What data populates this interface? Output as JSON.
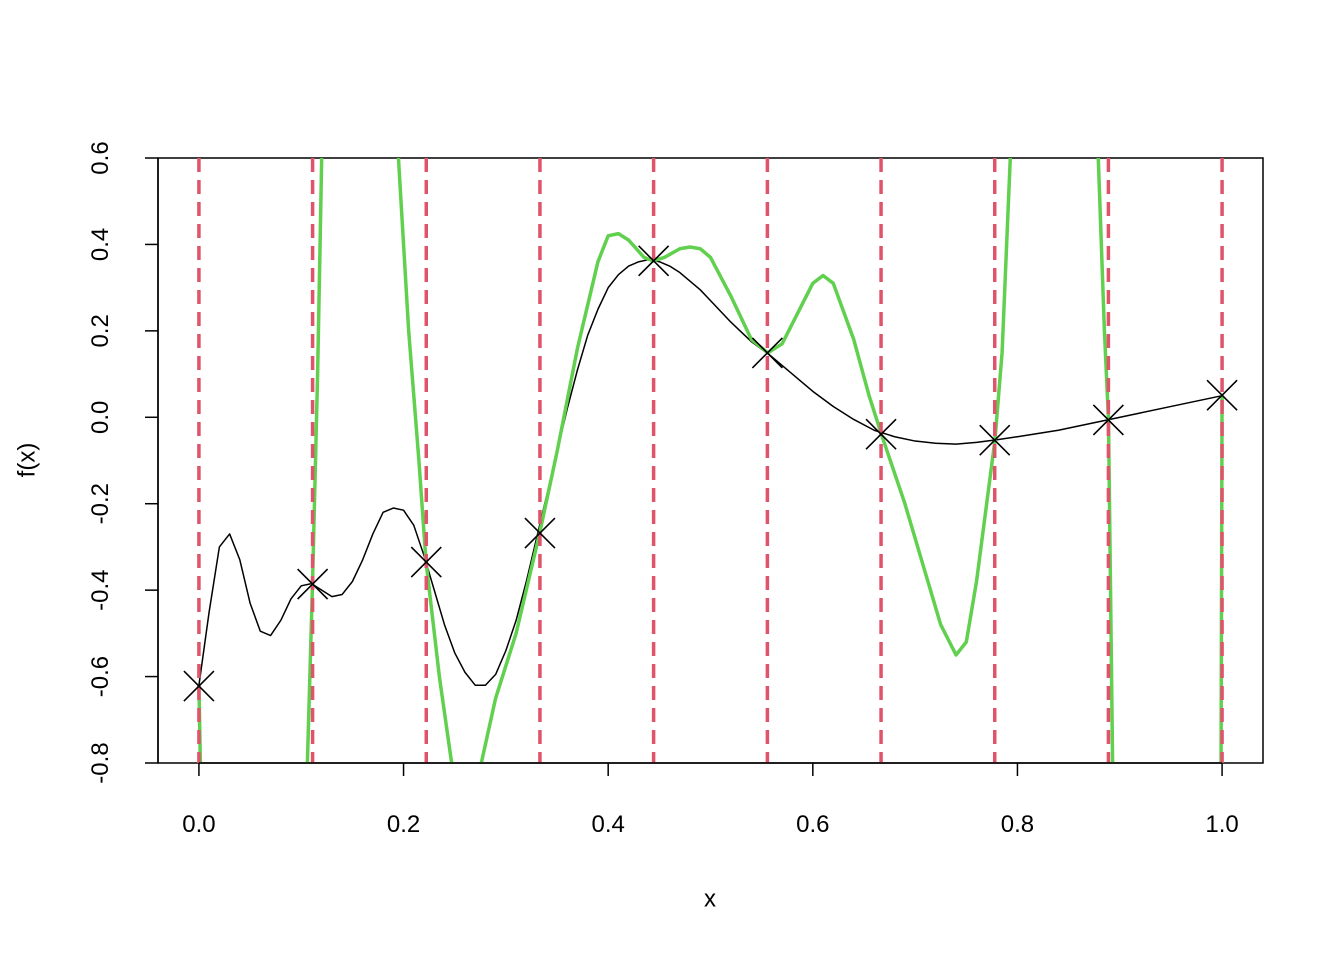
{
  "chart_data": {
    "type": "line",
    "xlabel": "x",
    "ylabel": "f(x)",
    "xlim": [
      -0.04,
      1.04
    ],
    "ylim": [
      -0.8,
      0.6
    ],
    "xticks": [
      {
        "value": 0,
        "label": "0.0"
      },
      0.2,
      0.4,
      0.6,
      0.8,
      {
        "value": 1,
        "label": "1.0"
      }
    ],
    "yticks": [
      {
        "value": -0.8,
        "label": "-0.8"
      },
      -0.6,
      -0.4,
      -0.2,
      {
        "value": 0,
        "label": "0.0"
      },
      0.2,
      0.4,
      0.6
    ],
    "series": [
      {
        "color": "#000000",
        "width": 1.5,
        "x": [
          0,
          0.01,
          0.02,
          0.03,
          0.04,
          0.05,
          0.06,
          0.07,
          0.08,
          0.09,
          0.1,
          0.11,
          0.12,
          0.13,
          0.14,
          0.15,
          0.16,
          0.17,
          0.18,
          0.19,
          0.2,
          0.21,
          0.22,
          0.23,
          0.24,
          0.25,
          0.26,
          0.27,
          0.28,
          0.29,
          0.3,
          0.31,
          0.32,
          0.33,
          0.34,
          0.35,
          0.36,
          0.37,
          0.38,
          0.39,
          0.4,
          0.41,
          0.42,
          0.43,
          0.44,
          0.45,
          0.46,
          0.47,
          0.48,
          0.49,
          0.5,
          0.52,
          0.54,
          0.56,
          0.58,
          0.6,
          0.62,
          0.64,
          0.66,
          0.68,
          0.7,
          0.72,
          0.74,
          0.76,
          0.78,
          0.8,
          0.84,
          0.88,
          0.92,
          0.96,
          1
        ],
        "values": [
          -0.62,
          -0.45,
          -0.3,
          -0.27,
          -0.33,
          -0.43,
          -0.495,
          -0.505,
          -0.47,
          -0.42,
          -0.39,
          -0.385,
          -0.4,
          -0.415,
          -0.41,
          -0.38,
          -0.33,
          -0.27,
          -0.22,
          -0.21,
          -0.215,
          -0.25,
          -0.32,
          -0.4,
          -0.48,
          -0.545,
          -0.59,
          -0.62,
          -0.62,
          -0.595,
          -0.54,
          -0.47,
          -0.38,
          -0.28,
          -0.18,
          -0.08,
          0.02,
          0.11,
          0.19,
          0.25,
          0.3,
          0.33,
          0.35,
          0.36,
          0.365,
          0.36,
          0.35,
          0.335,
          0.315,
          0.295,
          0.27,
          0.22,
          0.175,
          0.14,
          0.1,
          0.06,
          0.025,
          -0.005,
          -0.03,
          -0.045,
          -0.055,
          -0.06,
          -0.062,
          -0.058,
          -0.052,
          -0.045,
          -0.03,
          -0.01,
          0.01,
          0.03,
          0.05
        ]
      },
      {
        "color": "#61D04F",
        "width": 3.5,
        "x": [
          0,
          0.003,
          0.104,
          0.106,
          0.111,
          0.116,
          0.12,
          0.122,
          0.193,
          0.195,
          0.205,
          0.215,
          0.222,
          0.235,
          0.247,
          0.25,
          0.273,
          0.276,
          0.29,
          0.31,
          0.333,
          0.35,
          0.37,
          0.39,
          0.4,
          0.41,
          0.42,
          0.435,
          0.444,
          0.455,
          0.47,
          0.48,
          0.49,
          0.5,
          0.52,
          0.54,
          0.556,
          0.57,
          0.585,
          0.6,
          0.61,
          0.62,
          0.64,
          0.655,
          0.667,
          0.69,
          0.71,
          0.725,
          0.74,
          0.75,
          0.76,
          0.778,
          0.785,
          0.793,
          0.796,
          0.876,
          0.879,
          0.885,
          0.889,
          0.893,
          0.896,
          0.997,
          0.999,
          1
        ],
        "values": [
          -0.62,
          -1.0,
          -1.0,
          -0.8,
          -0.386,
          0.1,
          0.6,
          1.0,
          1.0,
          0.6,
          0.2,
          -0.1,
          -0.335,
          -0.6,
          -0.8,
          -1.0,
          -1.0,
          -0.8,
          -0.65,
          -0.5,
          -0.268,
          -0.08,
          0.16,
          0.36,
          0.42,
          0.425,
          0.41,
          0.37,
          0.362,
          0.37,
          0.39,
          0.394,
          0.39,
          0.37,
          0.28,
          0.18,
          0.149,
          0.17,
          0.24,
          0.31,
          0.328,
          0.31,
          0.18,
          0.05,
          -0.039,
          -0.2,
          -0.36,
          -0.48,
          -0.55,
          -0.52,
          -0.38,
          -0.053,
          0.15,
          0.6,
          1.0,
          1.0,
          0.6,
          0.2,
          -0.006,
          -0.8,
          -1.0,
          -1.0,
          -0.8,
          0.051
        ]
      }
    ],
    "points": {
      "marker": "x",
      "color": "#000000",
      "x": [
        0,
        0.1111,
        0.2222,
        0.3333,
        0.4444,
        0.5556,
        0.6667,
        0.7778,
        0.8889,
        1
      ],
      "values": [
        -0.622,
        -0.386,
        -0.335,
        -0.268,
        0.362,
        0.149,
        -0.039,
        -0.053,
        -0.006,
        0.051
      ]
    },
    "vlines": {
      "color": "#DF536B",
      "style": "dashed"
    }
  }
}
